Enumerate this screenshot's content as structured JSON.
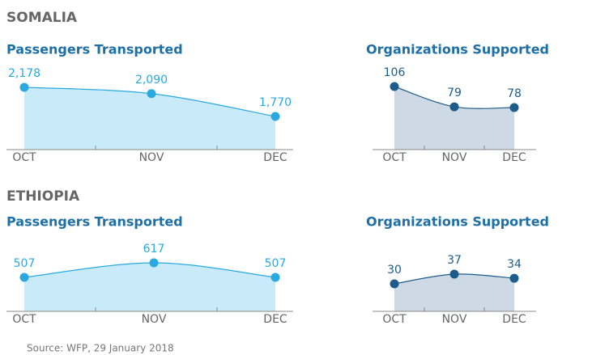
{
  "sections": [
    "SOMALIA",
    "ETHIOPIA"
  ],
  "source": "Source: WFP, 29 January 2018",
  "chart_data": [
    {
      "type": "area",
      "title": "Passengers Transported",
      "categories": [
        "OCT",
        "NOV",
        "DEC"
      ],
      "values": [
        2178,
        2090,
        1770
      ],
      "value_labels": [
        "2,178",
        "2,090",
        "1,770"
      ],
      "color": "#29a9e0",
      "fill": "#c9eaf8"
    },
    {
      "type": "area",
      "title": "Organizations Supported",
      "categories": [
        "OCT",
        "NOV",
        "DEC"
      ],
      "values": [
        106,
        79,
        78
      ],
      "color": "#1d5b8a",
      "fill": "#cdd9e5"
    },
    {
      "type": "area",
      "title": "Passengers Transported",
      "categories": [
        "OCT",
        "NOV",
        "DEC"
      ],
      "values": [
        507,
        617,
        507
      ],
      "color": "#29a9e0",
      "fill": "#c9eaf8"
    },
    {
      "type": "area",
      "title": "Organizations Supported",
      "categories": [
        "OCT",
        "NOV",
        "DEC"
      ],
      "values": [
        30,
        37,
        34
      ],
      "color": "#1d5b8a",
      "fill": "#cdd9e5"
    }
  ]
}
